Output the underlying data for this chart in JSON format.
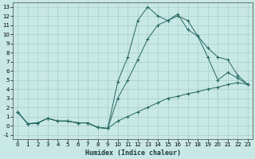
{
  "xlabel": "Humidex (Indice chaleur)",
  "bg_color": "#c8e8e5",
  "grid_color": "#a8ceca",
  "line_color": "#266860",
  "xlim": [
    -0.5,
    23.5
  ],
  "ylim": [
    -1.5,
    13.5
  ],
  "xticks": [
    0,
    1,
    2,
    3,
    4,
    5,
    6,
    7,
    8,
    9,
    10,
    11,
    12,
    13,
    14,
    15,
    16,
    17,
    18,
    19,
    20,
    21,
    22,
    23
  ],
  "yticks": [
    -1,
    0,
    1,
    2,
    3,
    4,
    5,
    6,
    7,
    8,
    9,
    10,
    11,
    12,
    13
  ],
  "line1": {
    "x": [
      0,
      1,
      2,
      3,
      4,
      5,
      6,
      7,
      8,
      9,
      10,
      11,
      12,
      13,
      14,
      15,
      16,
      17,
      18,
      19,
      20,
      21,
      22,
      23
    ],
    "y": [
      1.5,
      0.2,
      0.3,
      0.8,
      0.5,
      0.5,
      0.3,
      0.3,
      -0.2,
      -0.3,
      0.5,
      1.0,
      1.5,
      2.0,
      2.5,
      3.0,
      3.2,
      3.5,
      3.7,
      4.0,
      4.2,
      4.5,
      4.7,
      4.5
    ]
  },
  "line2": {
    "x": [
      0,
      1,
      2,
      3,
      4,
      5,
      6,
      7,
      8,
      9,
      10,
      11,
      12,
      13,
      14,
      15,
      16,
      17,
      18,
      19,
      20,
      21,
      22,
      23
    ],
    "y": [
      1.5,
      0.2,
      0.3,
      0.8,
      0.5,
      0.5,
      0.3,
      0.3,
      -0.2,
      -0.3,
      3.0,
      5.0,
      7.2,
      9.5,
      11.0,
      11.5,
      12.0,
      11.5,
      9.8,
      8.5,
      7.5,
      7.2,
      5.5,
      4.5
    ]
  },
  "line3": {
    "x": [
      0,
      1,
      2,
      3,
      4,
      5,
      6,
      7,
      8,
      9,
      10,
      11,
      12,
      13,
      14,
      15,
      16,
      17,
      18,
      19,
      20,
      21,
      22,
      23
    ],
    "y": [
      1.5,
      0.2,
      0.3,
      0.8,
      0.5,
      0.5,
      0.3,
      0.3,
      -0.2,
      -0.3,
      4.8,
      7.5,
      11.5,
      13.0,
      12.0,
      11.5,
      12.2,
      10.5,
      9.8,
      7.5,
      5.0,
      5.8,
      5.2,
      4.5
    ]
  }
}
